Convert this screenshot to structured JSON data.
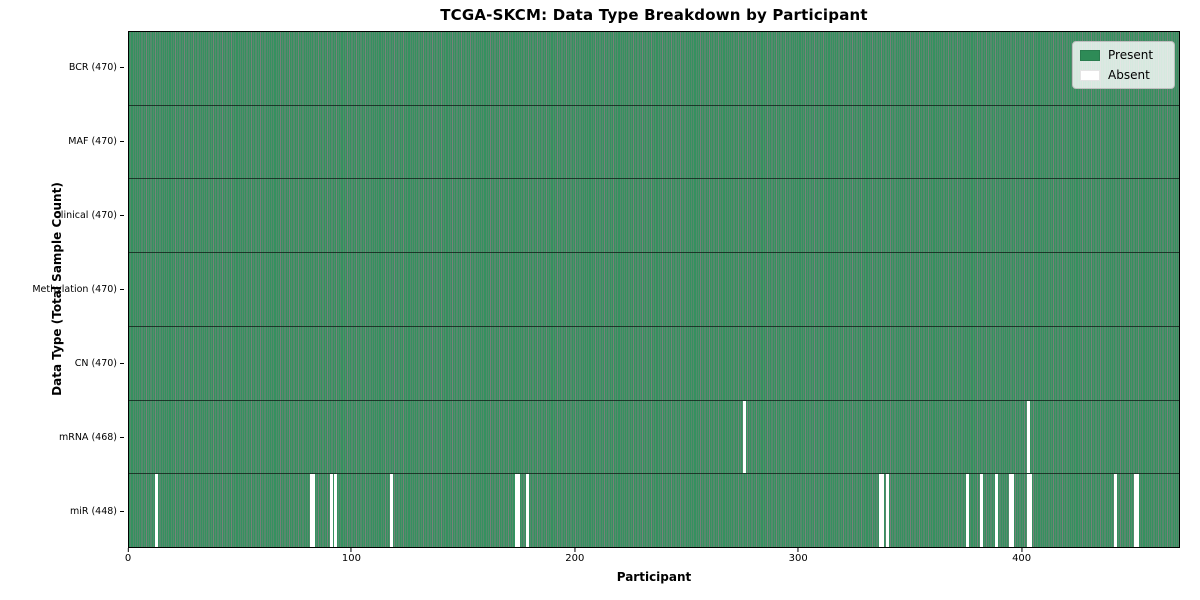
{
  "chart_data": {
    "type": "heatmap",
    "title": "TCGA-SKCM: Data Type Breakdown by Participant",
    "xlabel": "Participant",
    "ylabel": "Data Type (Total Sample Count)",
    "xlim": [
      0,
      470
    ],
    "x_ticks": [
      0,
      100,
      200,
      300,
      400
    ],
    "n_participants": 470,
    "grid": false,
    "legend_position": "upper right",
    "colors": {
      "present": "#2e8b57",
      "present_fill": "#35915f",
      "absent": "#ffffff",
      "cell_edge": "#0a2414"
    },
    "legend_items": [
      {
        "label": "Present",
        "color": "#2e8b57"
      },
      {
        "label": "Absent",
        "color": "#ffffff"
      }
    ],
    "rows": [
      {
        "name": "BCR",
        "label": "BCR (470)",
        "total_samples": 470,
        "present_count": 470,
        "absent_participants": []
      },
      {
        "name": "MAF",
        "label": "MAF (470)",
        "total_samples": 470,
        "present_count": 470,
        "absent_participants": []
      },
      {
        "name": "Clinical",
        "label": "Clinical (470)",
        "total_samples": 470,
        "present_count": 470,
        "absent_participants": []
      },
      {
        "name": "Methylation",
        "label": "Methylation (470)",
        "total_samples": 470,
        "present_count": 470,
        "absent_participants": []
      },
      {
        "name": "CN",
        "label": "CN (470)",
        "total_samples": 470,
        "present_count": 470,
        "absent_participants": []
      },
      {
        "name": "mRNA",
        "label": "mRNA (468)",
        "total_samples": 468,
        "present_count": 468,
        "absent_participants": [
          275,
          402
        ]
      },
      {
        "name": "miR",
        "label": "miR (448)",
        "total_samples": 448,
        "present_count": 448,
        "absent_participants": [
          12,
          81,
          82,
          90,
          92,
          117,
          173,
          174,
          178,
          336,
          337,
          339,
          375,
          381,
          388,
          394,
          395,
          402,
          403,
          441,
          450,
          451
        ]
      }
    ]
  }
}
